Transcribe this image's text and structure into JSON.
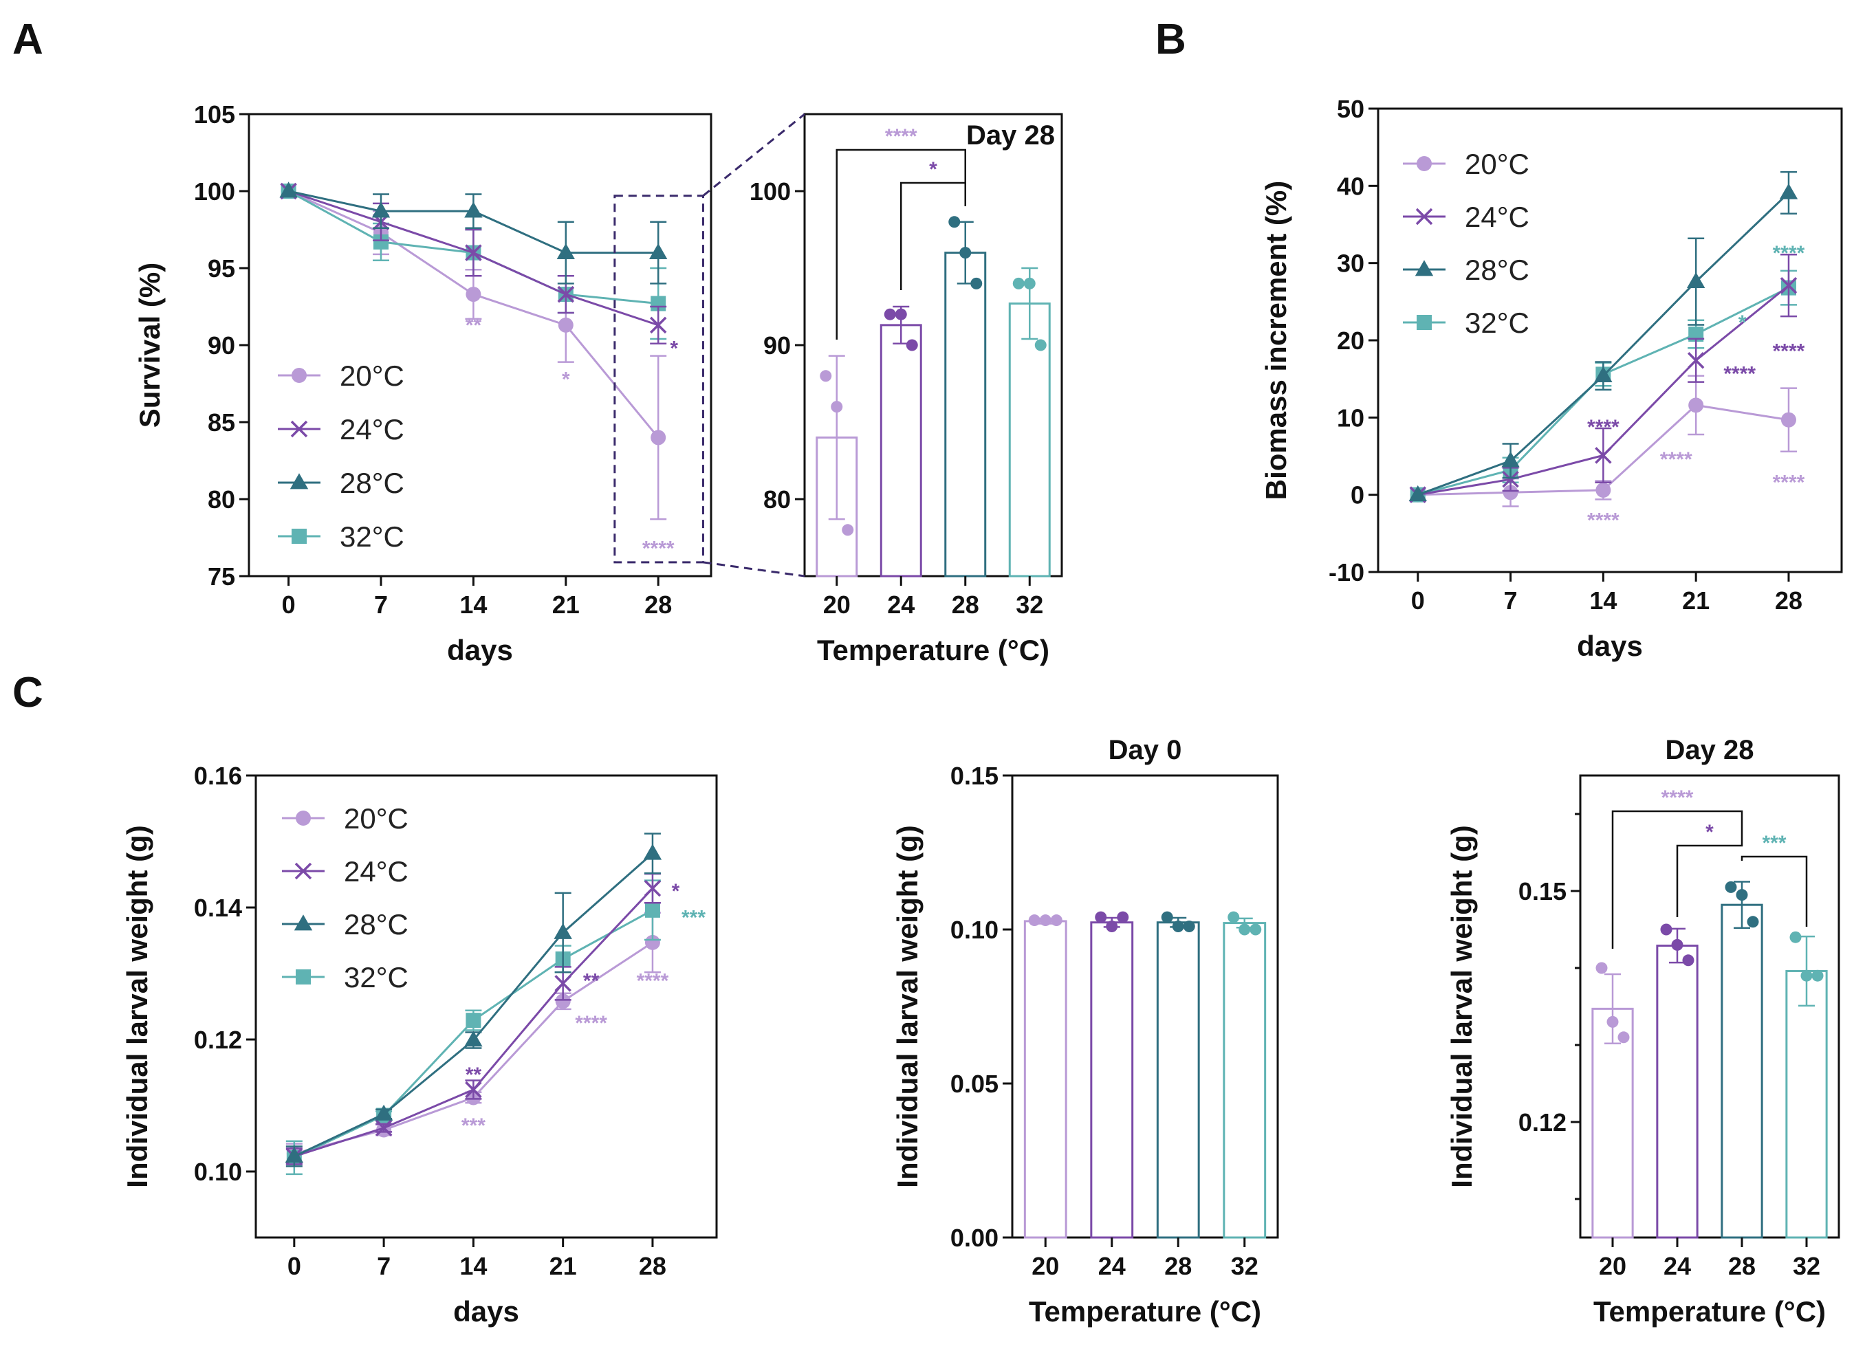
{
  "colors": {
    "20": "#b99ad6",
    "24": "#7b4aa8",
    "28": "#2f6f80",
    "32": "#5fb3b3",
    "axis": "#111111",
    "zoom": "#3a2a6b"
  },
  "panels": {
    "A": "A",
    "B": "B",
    "C": "C"
  },
  "chart_data": [
    {
      "id": "A-line",
      "panel": "A",
      "type": "line",
      "xlabel": "days",
      "ylabel": "Survival (%)",
      "x": [
        0,
        7,
        14,
        21,
        28
      ],
      "xlim": [
        -3,
        32
      ],
      "ylim": [
        75,
        105
      ],
      "yticks": [
        75,
        80,
        85,
        90,
        95,
        100,
        105
      ],
      "legend": "bottom-left",
      "series": [
        {
          "name": "20°C",
          "key": "20",
          "marker": "circle",
          "values": [
            100,
            97.3,
            93.3,
            91.3,
            84
          ],
          "err": [
            0,
            1.4,
            1.6,
            2.4,
            5.3
          ]
        },
        {
          "name": "24°C",
          "key": "24",
          "marker": "x",
          "values": [
            100,
            98,
            96,
            93.3,
            91.3
          ],
          "err": [
            0,
            1.2,
            1.5,
            1.2,
            1.2
          ]
        },
        {
          "name": "28°C",
          "key": "28",
          "marker": "triangle",
          "values": [
            100,
            98.7,
            98.7,
            96,
            96
          ],
          "err": [
            0,
            1.1,
            1.1,
            2,
            2
          ]
        },
        {
          "name": "32°C",
          "key": "32",
          "marker": "square",
          "values": [
            100,
            96.7,
            96,
            93.3,
            92.7
          ],
          "err": [
            0,
            1.2,
            1.5,
            1.2,
            2.3
          ]
        }
      ],
      "annotations": [
        {
          "text": "**",
          "x": 14,
          "y": 91.3,
          "key": "20"
        },
        {
          "text": "*",
          "x": 21,
          "y": 87.8,
          "key": "20"
        },
        {
          "text": "****",
          "x": 28,
          "y": 76.8,
          "key": "20"
        },
        {
          "text": "*",
          "x": 29.2,
          "y": 89.8,
          "key": "24"
        }
      ]
    },
    {
      "id": "A-bar",
      "panel": "A",
      "type": "bar",
      "title": "Day 28",
      "xlabel": "Temperature (°C)",
      "ylabel": "",
      "categories": [
        "20",
        "24",
        "28",
        "32"
      ],
      "values": [
        84,
        91.3,
        96,
        92.7
      ],
      "err": [
        5.3,
        1.2,
        2,
        2.3
      ],
      "points": [
        [
          88,
          86,
          78
        ],
        [
          92,
          92,
          90
        ],
        [
          98,
          96,
          94
        ],
        [
          94,
          94,
          90
        ]
      ],
      "ylim": [
        75,
        105
      ],
      "yticks": [
        80,
        90,
        100
      ],
      "brackets": [
        {
          "from": 0,
          "to": 2,
          "label": "****",
          "key": "20"
        },
        {
          "from": 1,
          "to": 2,
          "label": "*",
          "key": "24"
        }
      ]
    },
    {
      "id": "B-line",
      "panel": "B",
      "type": "line",
      "xlabel": "days",
      "ylabel": "Biomass increment (%)",
      "x": [
        0,
        7,
        14,
        21,
        28
      ],
      "xlim": [
        -3,
        32
      ],
      "ylim": [
        -10,
        50
      ],
      "yticks": [
        -10,
        0,
        10,
        20,
        30,
        40,
        50
      ],
      "legend": "top-left",
      "series": [
        {
          "name": "20°C",
          "key": "20",
          "marker": "circle",
          "values": [
            0,
            0.3,
            0.6,
            11.6,
            9.7
          ],
          "err": [
            0,
            1.8,
            1.2,
            3.8,
            4.1
          ]
        },
        {
          "name": "24°C",
          "key": "24",
          "marker": "x",
          "values": [
            0,
            2,
            5.1,
            17.4,
            27.1
          ],
          "err": [
            0,
            1.5,
            3.5,
            2.8,
            4
          ]
        },
        {
          "name": "28°C",
          "key": "28",
          "marker": "triangle",
          "values": [
            0,
            4.4,
            15.4,
            27.6,
            39.1
          ],
          "err": [
            0,
            2.2,
            1.8,
            5.6,
            2.7
          ]
        },
        {
          "name": "32°C",
          "key": "32",
          "marker": "square",
          "values": [
            0,
            3.2,
            15.6,
            20.8,
            26.8
          ],
          "err": [
            0,
            1.6,
            1.5,
            1.8,
            2.2
          ]
        }
      ],
      "annotations": [
        {
          "text": "****",
          "x": 14,
          "y": -3.3,
          "key": "20"
        },
        {
          "text": "****",
          "x": 14,
          "y": 8.8,
          "key": "24"
        },
        {
          "text": "****",
          "x": 19.5,
          "y": 4.6,
          "key": "20"
        },
        {
          "text": "****",
          "x": 24.3,
          "y": 15.7,
          "key": "24"
        },
        {
          "text": "*",
          "x": 24.5,
          "y": 22.3,
          "key": "32"
        },
        {
          "text": "****",
          "x": 28,
          "y": 31.3,
          "key": "32"
        },
        {
          "text": "****",
          "x": 28,
          "y": 18.6,
          "key": "24"
        },
        {
          "text": "****",
          "x": 28,
          "y": 1.6,
          "key": "20"
        }
      ]
    },
    {
      "id": "C-line",
      "panel": "C",
      "type": "line",
      "xlabel": "days",
      "ylabel": "Individual larval weight (g)",
      "x": [
        0,
        7,
        14,
        21,
        28
      ],
      "xlim": [
        -3,
        33
      ],
      "ylim": [
        0.09,
        0.16
      ],
      "yticks": [
        0.1,
        0.12,
        0.14,
        0.16
      ],
      "tickfmt": 2,
      "legend": "top-left",
      "series": [
        {
          "name": "20°C",
          "key": "20",
          "marker": "circle",
          "values": [
            0.1027,
            0.1063,
            0.1112,
            0.1258,
            0.1347
          ],
          "err": [
            0.0015,
            0.0008,
            0.0008,
            0.0012,
            0.0045
          ]
        },
        {
          "name": "24°C",
          "key": "24",
          "marker": "x",
          "values": [
            0.1023,
            0.1066,
            0.1124,
            0.1285,
            0.1429
          ],
          "err": [
            0.0012,
            0.0006,
            0.0014,
            0.0025,
            0.0022
          ]
        },
        {
          "name": "28°C",
          "key": "28",
          "marker": "triangle",
          "values": [
            0.1023,
            0.1087,
            0.1199,
            0.1362,
            0.1482
          ],
          "err": [
            0.0015,
            0.0007,
            0.0012,
            0.006,
            0.003
          ]
        },
        {
          "name": "32°C",
          "key": "32",
          "marker": "square",
          "values": [
            0.1021,
            0.1085,
            0.1229,
            0.1322,
            0.1396
          ],
          "err": [
            0.0025,
            0.0006,
            0.0015,
            0.002,
            0.0045
          ]
        }
      ],
      "annotations": [
        {
          "text": "**",
          "x": 14,
          "y": 0.1147,
          "key": "24"
        },
        {
          "text": "***",
          "x": 14,
          "y": 0.107,
          "key": "20"
        },
        {
          "text": "**",
          "x": 23.2,
          "y": 0.1289,
          "key": "24"
        },
        {
          "text": "****",
          "x": 23.2,
          "y": 0.1225,
          "key": "20"
        },
        {
          "text": "****",
          "x": 28,
          "y": 0.1289,
          "key": "20"
        },
        {
          "text": "*",
          "x": 29.8,
          "y": 0.1425,
          "key": "24"
        },
        {
          "text": "***",
          "x": 31.2,
          "y": 0.1385,
          "key": "32"
        }
      ]
    },
    {
      "id": "C-bar-day0",
      "panel": "C",
      "type": "bar",
      "title": "Day 0",
      "xlabel": "Temperature (°C)",
      "ylabel": "Individual larval weight (g)",
      "categories": [
        "20",
        "24",
        "28",
        "32"
      ],
      "values": [
        0.1027,
        0.1023,
        0.1023,
        0.1021
      ],
      "err": [
        0.0008,
        0.0015,
        0.0015,
        0.0015
      ],
      "points": [
        [
          0.103,
          0.103,
          0.103
        ],
        [
          0.104,
          0.101,
          0.104
        ],
        [
          0.104,
          0.101,
          0.101
        ],
        [
          0.104,
          0.1,
          0.1
        ]
      ],
      "ylim": [
        0,
        0.15
      ],
      "yticks": [
        0,
        0.05,
        0.1,
        0.15
      ],
      "tickfmt": 2,
      "brackets": []
    },
    {
      "id": "C-bar-day28",
      "panel": "C",
      "type": "bar",
      "title": "Day 28",
      "xlabel": "Temperature (°C)",
      "ylabel": "Individual larval weight (g)",
      "categories": [
        "20",
        "24",
        "28",
        "32"
      ],
      "values": [
        0.1347,
        0.1429,
        0.1482,
        0.1396
      ],
      "err": [
        0.0045,
        0.0022,
        0.003,
        0.0045
      ],
      "points": [
        [
          0.14,
          0.133,
          0.131
        ],
        [
          0.145,
          0.143,
          0.141
        ],
        [
          0.1505,
          0.1495,
          0.146
        ],
        [
          0.144,
          0.139,
          0.139
        ]
      ],
      "ylim": [
        0.105,
        0.165
      ],
      "yticks": [
        0.12,
        0.15
      ],
      "minorticks": [
        0.11,
        0.13,
        0.14,
        0.16
      ],
      "tickfmt": 2,
      "brackets": [
        {
          "from": 0,
          "to": 2,
          "label": "****",
          "key": "20"
        },
        {
          "from": 1,
          "to": 2,
          "label": "*",
          "key": "24"
        },
        {
          "from": 2,
          "to": 3,
          "label": "***",
          "key": "32"
        }
      ]
    }
  ]
}
